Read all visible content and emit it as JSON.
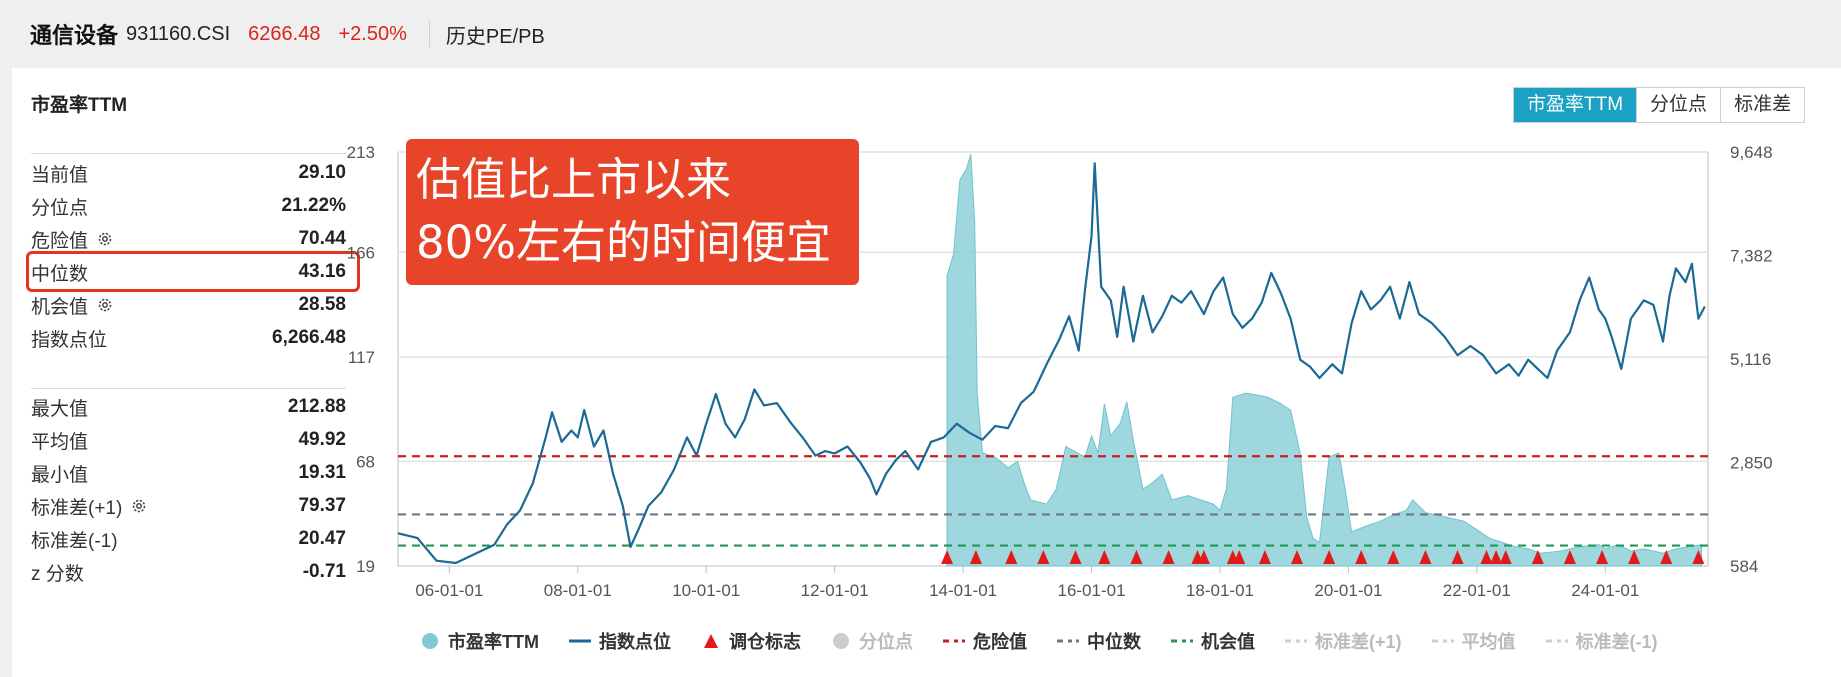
{
  "header": {
    "name": "通信设备",
    "code": "931160.CSI",
    "price": "6266.48",
    "change": "+2.50%",
    "history_link": "历史PE/PB"
  },
  "panel": {
    "title": "市盈率TTM",
    "tabs": [
      "市盈率TTM",
      "分位点",
      "标准差"
    ],
    "active_tab": "市盈率TTM"
  },
  "stats": {
    "group1": [
      {
        "label": "当前值",
        "value": "29.10",
        "gear": false
      },
      {
        "label": "分位点",
        "value": "21.22%",
        "gear": false
      },
      {
        "label": "危险值",
        "value": "70.44",
        "gear": true
      },
      {
        "label": "中位数",
        "value": "43.16",
        "gear": false
      },
      {
        "label": "机会值",
        "value": "28.58",
        "gear": true
      },
      {
        "label": "指数点位",
        "value": "6,266.48",
        "gear": false
      }
    ],
    "group2": [
      {
        "label": "最大值",
        "value": "212.88",
        "gear": false
      },
      {
        "label": "平均值",
        "value": "49.92",
        "gear": false
      },
      {
        "label": "最小值",
        "value": "19.31",
        "gear": false
      },
      {
        "label": "标准差(+1)",
        "value": "79.37",
        "gear": true
      },
      {
        "label": "标准差(-1)",
        "value": "20.47",
        "gear": false
      },
      {
        "label": "z 分数",
        "value": "-0.71",
        "gear": false
      }
    ]
  },
  "annotation": "估值比上市以来\n80%左右的时间便宜",
  "colors": {
    "accent": "#1aa1c4",
    "pe_fill": "#8ed0d9",
    "index_line": "#1b6a93",
    "danger": "#c8201c",
    "median": "#6f7480",
    "opportunity": "#1f9a55",
    "rebalance": "#e31a1a",
    "price_red": "#d7261e"
  },
  "chart_data": {
    "type": "area",
    "x_ticks": [
      "06-01-01",
      "08-01-01",
      "10-01-01",
      "12-01-01",
      "14-01-01",
      "16-01-01",
      "18-01-01",
      "20-01-01",
      "22-01-01",
      "24-01-01"
    ],
    "x_range": [
      2005.2,
      2025.6
    ],
    "y_left_ticks": [
      "213",
      "166",
      "117",
      "68",
      "19"
    ],
    "y_left_range": [
      19,
      213
    ],
    "y_right_ticks": [
      "9,648",
      "7,382",
      "5,116",
      "2,850",
      "584"
    ],
    "y_right_range": [
      584,
      9648
    ],
    "reference_lines": [
      {
        "name": "危险值",
        "value": 70.44
      },
      {
        "name": "中位数",
        "value": 43.16
      },
      {
        "name": "机会值",
        "value": 28.58
      }
    ],
    "series": [
      {
        "name": "市盈率TTM",
        "axis": "left",
        "points": [
          [
            2013.75,
            19
          ],
          [
            2013.75,
            155
          ],
          [
            2013.85,
            165
          ],
          [
            2013.95,
            200
          ],
          [
            2014.05,
            205
          ],
          [
            2014.12,
            212
          ],
          [
            2014.18,
            180
          ],
          [
            2014.22,
            100
          ],
          [
            2014.3,
            72
          ],
          [
            2014.5,
            70
          ],
          [
            2014.7,
            65
          ],
          [
            2014.85,
            68
          ],
          [
            2014.95,
            58
          ],
          [
            2015.05,
            50
          ],
          [
            2015.3,
            48
          ],
          [
            2015.45,
            55
          ],
          [
            2015.6,
            75
          ],
          [
            2015.9,
            70
          ],
          [
            2016.0,
            80
          ],
          [
            2016.1,
            72
          ],
          [
            2016.2,
            95
          ],
          [
            2016.3,
            80
          ],
          [
            2016.45,
            86
          ],
          [
            2016.55,
            96
          ],
          [
            2016.65,
            78
          ],
          [
            2016.8,
            55
          ],
          [
            2016.95,
            58
          ],
          [
            2017.1,
            62
          ],
          [
            2017.25,
            50
          ],
          [
            2017.5,
            52
          ],
          [
            2017.7,
            50
          ],
          [
            2017.9,
            48
          ],
          [
            2018.0,
            45
          ],
          [
            2018.1,
            55
          ],
          [
            2018.2,
            98
          ],
          [
            2018.4,
            100
          ],
          [
            2018.6,
            99
          ],
          [
            2018.75,
            98
          ],
          [
            2018.95,
            95
          ],
          [
            2019.1,
            92
          ],
          [
            2019.25,
            72
          ],
          [
            2019.35,
            42
          ],
          [
            2019.45,
            32
          ],
          [
            2019.55,
            30
          ],
          [
            2019.7,
            70
          ],
          [
            2019.85,
            72
          ],
          [
            2019.95,
            55
          ],
          [
            2020.05,
            35
          ],
          [
            2020.3,
            38
          ],
          [
            2020.5,
            40
          ],
          [
            2020.7,
            43
          ],
          [
            2020.9,
            45
          ],
          [
            2021.0,
            50
          ],
          [
            2021.2,
            44
          ],
          [
            2021.5,
            42
          ],
          [
            2021.8,
            40
          ],
          [
            2022.0,
            36
          ],
          [
            2022.2,
            32
          ],
          [
            2022.4,
            30
          ],
          [
            2022.6,
            28
          ],
          [
            2022.8,
            27
          ],
          [
            2023.0,
            25
          ],
          [
            2023.3,
            26
          ],
          [
            2023.6,
            28
          ],
          [
            2023.9,
            29
          ],
          [
            2024.0,
            27
          ],
          [
            2024.2,
            29
          ],
          [
            2024.4,
            26
          ],
          [
            2024.6,
            27
          ],
          [
            2024.9,
            25
          ],
          [
            2025.1,
            27
          ],
          [
            2025.3,
            28
          ],
          [
            2025.5,
            29
          ],
          [
            2025.5,
            19
          ]
        ]
      },
      {
        "name": "指数点位",
        "axis": "right",
        "points": [
          [
            2005.2,
            1300
          ],
          [
            2005.5,
            1200
          ],
          [
            2005.8,
            700
          ],
          [
            2006.1,
            650
          ],
          [
            2006.4,
            850
          ],
          [
            2006.7,
            1050
          ],
          [
            2006.9,
            1500
          ],
          [
            2007.1,
            1800
          ],
          [
            2007.3,
            2400
          ],
          [
            2007.5,
            3400
          ],
          [
            2007.6,
            3950
          ],
          [
            2007.75,
            3300
          ],
          [
            2007.9,
            3550
          ],
          [
            2008.0,
            3400
          ],
          [
            2008.1,
            4000
          ],
          [
            2008.25,
            3200
          ],
          [
            2008.4,
            3550
          ],
          [
            2008.55,
            2600
          ],
          [
            2008.7,
            1900
          ],
          [
            2008.82,
            1000
          ],
          [
            2008.95,
            1400
          ],
          [
            2009.1,
            1900
          ],
          [
            2009.3,
            2200
          ],
          [
            2009.5,
            2700
          ],
          [
            2009.7,
            3400
          ],
          [
            2009.85,
            3000
          ],
          [
            2010.0,
            3700
          ],
          [
            2010.15,
            4350
          ],
          [
            2010.3,
            3700
          ],
          [
            2010.45,
            3400
          ],
          [
            2010.6,
            3800
          ],
          [
            2010.75,
            4450
          ],
          [
            2010.9,
            4100
          ],
          [
            2011.1,
            4150
          ],
          [
            2011.3,
            3750
          ],
          [
            2011.5,
            3400
          ],
          [
            2011.7,
            3000
          ],
          [
            2011.85,
            3100
          ],
          [
            2012.0,
            3050
          ],
          [
            2012.2,
            3200
          ],
          [
            2012.4,
            2850
          ],
          [
            2012.55,
            2500
          ],
          [
            2012.65,
            2150
          ],
          [
            2012.8,
            2600
          ],
          [
            2012.95,
            2900
          ],
          [
            2013.1,
            3100
          ],
          [
            2013.3,
            2700
          ],
          [
            2013.5,
            3300
          ],
          [
            2013.7,
            3400
          ],
          [
            2013.9,
            3700
          ],
          [
            2014.1,
            3500
          ],
          [
            2014.3,
            3350
          ],
          [
            2014.5,
            3650
          ],
          [
            2014.7,
            3600
          ],
          [
            2014.9,
            4150
          ],
          [
            2015.1,
            4400
          ],
          [
            2015.3,
            5000
          ],
          [
            2015.5,
            5550
          ],
          [
            2015.65,
            6050
          ],
          [
            2015.8,
            5300
          ],
          [
            2015.9,
            6650
          ],
          [
            2016.0,
            7800
          ],
          [
            2016.05,
            9400
          ],
          [
            2016.15,
            6700
          ],
          [
            2016.3,
            6400
          ],
          [
            2016.4,
            5600
          ],
          [
            2016.5,
            6700
          ],
          [
            2016.65,
            5500
          ],
          [
            2016.8,
            6500
          ],
          [
            2016.95,
            5700
          ],
          [
            2017.1,
            6050
          ],
          [
            2017.25,
            6500
          ],
          [
            2017.4,
            6350
          ],
          [
            2017.55,
            6600
          ],
          [
            2017.75,
            6100
          ],
          [
            2017.9,
            6600
          ],
          [
            2018.05,
            6900
          ],
          [
            2018.2,
            6100
          ],
          [
            2018.35,
            5800
          ],
          [
            2018.5,
            6000
          ],
          [
            2018.65,
            6350
          ],
          [
            2018.8,
            7000
          ],
          [
            2018.95,
            6550
          ],
          [
            2019.1,
            6000
          ],
          [
            2019.25,
            5100
          ],
          [
            2019.4,
            4950
          ],
          [
            2019.55,
            4700
          ],
          [
            2019.75,
            5000
          ],
          [
            2019.9,
            4800
          ],
          [
            2020.05,
            5900
          ],
          [
            2020.2,
            6600
          ],
          [
            2020.35,
            6200
          ],
          [
            2020.5,
            6400
          ],
          [
            2020.65,
            6700
          ],
          [
            2020.8,
            6000
          ],
          [
            2020.95,
            6800
          ],
          [
            2021.1,
            6100
          ],
          [
            2021.3,
            5900
          ],
          [
            2021.5,
            5600
          ],
          [
            2021.7,
            5200
          ],
          [
            2021.9,
            5400
          ],
          [
            2022.1,
            5200
          ],
          [
            2022.3,
            4800
          ],
          [
            2022.5,
            5000
          ],
          [
            2022.65,
            4750
          ],
          [
            2022.8,
            5100
          ],
          [
            2022.95,
            4900
          ],
          [
            2023.1,
            4700
          ],
          [
            2023.25,
            5300
          ],
          [
            2023.45,
            5700
          ],
          [
            2023.6,
            6400
          ],
          [
            2023.75,
            6900
          ],
          [
            2023.9,
            6200
          ],
          [
            2024.0,
            6000
          ],
          [
            2024.1,
            5600
          ],
          [
            2024.25,
            4900
          ],
          [
            2024.4,
            6000
          ],
          [
            2024.6,
            6400
          ],
          [
            2024.75,
            6300
          ],
          [
            2024.9,
            5500
          ],
          [
            2025.0,
            6500
          ],
          [
            2025.1,
            7100
          ],
          [
            2025.25,
            6800
          ],
          [
            2025.35,
            7200
          ],
          [
            2025.45,
            6000
          ],
          [
            2025.55,
            6266
          ]
        ]
      }
    ],
    "rebalance_dates": [
      2013.75,
      2014.2,
      2014.75,
      2015.25,
      2015.75,
      2016.2,
      2016.7,
      2017.2,
      2017.65,
      2017.75,
      2018.2,
      2018.3,
      2018.7,
      2019.2,
      2019.7,
      2020.2,
      2020.7,
      2021.2,
      2021.7,
      2022.15,
      2022.3,
      2022.45,
      2022.95,
      2023.45,
      2023.95,
      2024.45,
      2024.95,
      2025.45
    ],
    "legend": [
      {
        "name": "市盈率TTM",
        "marker": "dot",
        "color": "#7fc9d3",
        "active": true
      },
      {
        "name": "指数点位",
        "marker": "line",
        "color": "#1b6a93",
        "active": true
      },
      {
        "name": "调仓标志",
        "marker": "triangle",
        "color": "#e31a1a",
        "active": true
      },
      {
        "name": "分位点",
        "marker": "dot",
        "color": "#cccccc",
        "active": false
      },
      {
        "name": "危险值",
        "marker": "dash",
        "color": "#c8201c",
        "active": true
      },
      {
        "name": "中位数",
        "marker": "dash",
        "color": "#6f7480",
        "active": true
      },
      {
        "name": "机会值",
        "marker": "dash",
        "color": "#1f9a55",
        "active": true
      },
      {
        "name": "标准差(+1)",
        "marker": "dash",
        "color": "#cccccc",
        "active": false
      },
      {
        "name": "平均值",
        "marker": "dash",
        "color": "#cccccc",
        "active": false
      },
      {
        "name": "标准差(-1)",
        "marker": "dash",
        "color": "#cccccc",
        "active": false
      }
    ]
  }
}
